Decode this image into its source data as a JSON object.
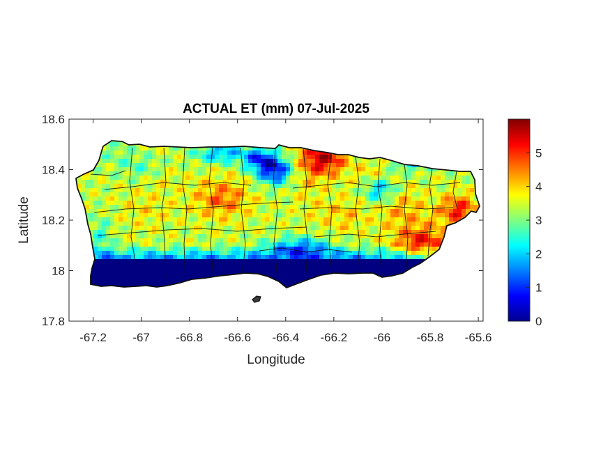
{
  "chart_data": {
    "type": "heatmap",
    "title": "ACTUAL ET (mm) 07-Jul-2025",
    "xlabel": "Longitude",
    "ylabel": "Latitude",
    "xlim": [
      -67.3,
      -65.58
    ],
    "ylim": [
      17.8,
      18.6
    ],
    "xticks": [
      -67.2,
      -67,
      -66.8,
      -66.6,
      -66.4,
      -66.2,
      -66,
      -65.8,
      -65.6
    ],
    "xtick_labels": [
      "-67.2",
      "-67",
      "-66.8",
      "-66.6",
      "-66.4",
      "-66.2",
      "-66",
      "-65.8",
      "-65.6"
    ],
    "yticks": [
      17.8,
      18,
      18.2,
      18.4,
      18.6
    ],
    "ytick_labels": [
      "17.8",
      "18",
      "18.2",
      "18.4",
      "18.6"
    ],
    "colorbar": {
      "colormap": "jet",
      "range": [
        0,
        6
      ],
      "ticks": [
        0,
        1,
        2,
        3,
        4,
        5
      ],
      "tick_labels": [
        "0",
        "1",
        "2",
        "3",
        "4",
        "5"
      ]
    },
    "grid": false
  }
}
